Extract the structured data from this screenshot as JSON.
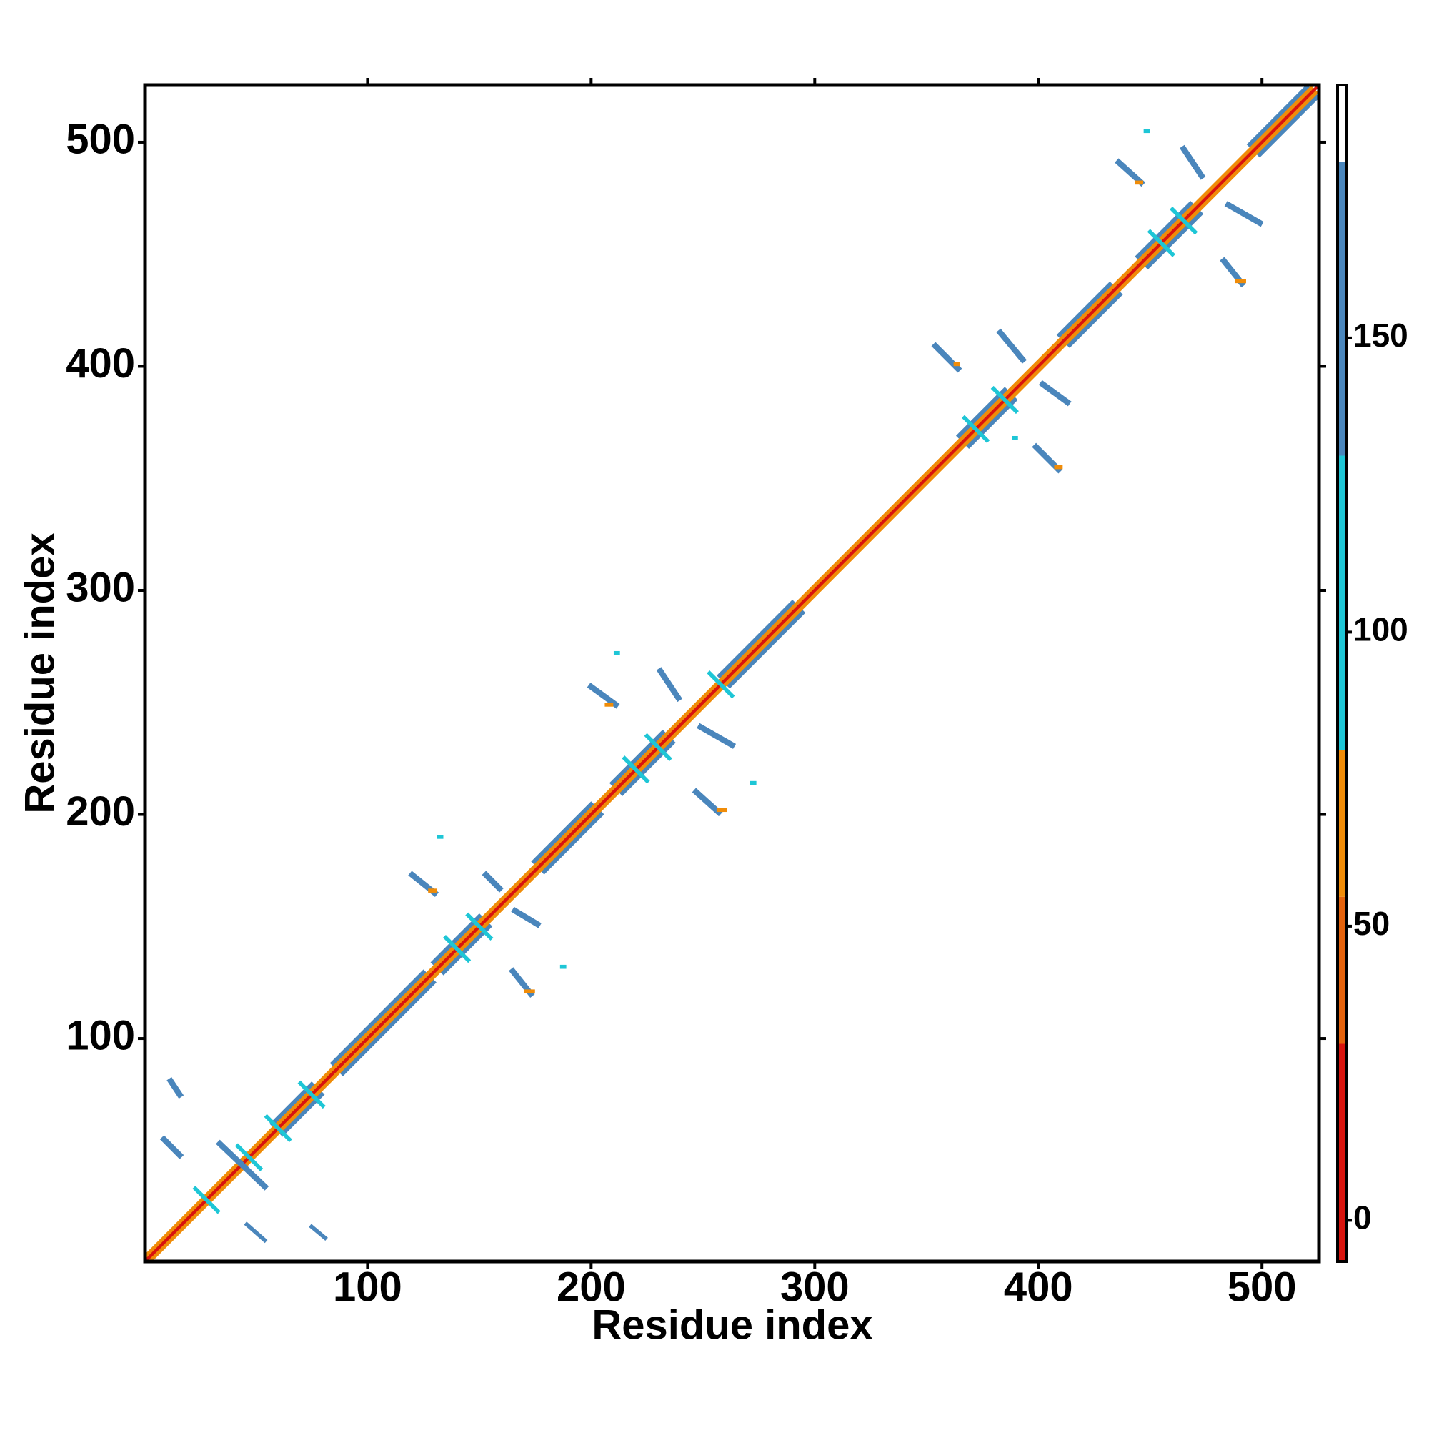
{
  "chart_data": {
    "type": "heatmap",
    "xlabel": "Residue index",
    "ylabel": "Residue index",
    "xlim": [
      0.5,
      525.5
    ],
    "ylim": [
      0.5,
      525.5
    ],
    "xticks": [
      100,
      200,
      300,
      400,
      500
    ],
    "yticks": [
      100,
      200,
      300,
      400,
      500
    ],
    "colorbar": {
      "lim": [
        -7,
        193
      ],
      "ticks": [
        0,
        50,
        100,
        150
      ],
      "breaks": [
        -7,
        30,
        55,
        80,
        130,
        180,
        193
      ],
      "colors": [
        "#d8140e",
        "#e4620c",
        "#f08c08",
        "#1ec6d6",
        "#4a86bc",
        "#ffffff"
      ]
    },
    "contacts": [
      {
        "x": [
          58,
          75
        ],
        "y": [
          62,
          79
        ],
        "value": 165
      },
      {
        "x": [
          62,
          79
        ],
        "y": [
          58,
          75
        ],
        "value": 165
      },
      {
        "x": [
          85,
          125
        ],
        "y": [
          89,
          129
        ],
        "value": 165
      },
      {
        "x": [
          89,
          129
        ],
        "y": [
          85,
          125
        ],
        "value": 165
      },
      {
        "x": [
          130,
          150
        ],
        "y": [
          134,
          154
        ],
        "value": 165
      },
      {
        "x": [
          134,
          154
        ],
        "y": [
          130,
          150
        ],
        "value": 165
      },
      {
        "x": [
          175,
          200
        ],
        "y": [
          179,
          204
        ],
        "value": 165
      },
      {
        "x": [
          179,
          204
        ],
        "y": [
          175,
          200
        ],
        "value": 165
      },
      {
        "x": [
          210,
          232
        ],
        "y": [
          214,
          236
        ],
        "value": 165
      },
      {
        "x": [
          214,
          236
        ],
        "y": [
          210,
          232
        ],
        "value": 165
      },
      {
        "x": [
          258,
          290
        ],
        "y": [
          262,
          294
        ],
        "value": 165
      },
      {
        "x": [
          262,
          294
        ],
        "y": [
          258,
          290
        ],
        "value": 165
      },
      {
        "x": [
          365,
          385
        ],
        "y": [
          369,
          389
        ],
        "value": 165
      },
      {
        "x": [
          369,
          389
        ],
        "y": [
          365,
          385
        ],
        "value": 165
      },
      {
        "x": [
          410,
          432
        ],
        "y": [
          414,
          436
        ],
        "value": 165
      },
      {
        "x": [
          414,
          436
        ],
        "y": [
          410,
          432
        ],
        "value": 165
      },
      {
        "x": [
          445,
          468
        ],
        "y": [
          449,
          472
        ],
        "value": 165
      },
      {
        "x": [
          449,
          472
        ],
        "y": [
          445,
          468
        ],
        "value": 165
      },
      {
        "x": [
          495,
          520
        ],
        "y": [
          499,
          524
        ],
        "value": 165
      },
      {
        "x": [
          499,
          524
        ],
        "y": [
          495,
          520
        ],
        "value": 165
      },
      {
        "x": [
          1,
          522
        ],
        "y": [
          3,
          524
        ],
        "value": 60
      },
      {
        "x": [
          3,
          524
        ],
        "y": [
          1,
          522
        ],
        "value": 60
      },
      {
        "x": [
          1,
          525
        ],
        "y": [
          1,
          525
        ],
        "value": 10
      },
      {
        "x": [
          23,
          33
        ],
        "y": [
          33,
          23
        ],
        "value": 110
      },
      {
        "x": [
          42,
          52
        ],
        "y": [
          52,
          42
        ],
        "value": 110
      },
      {
        "x": [
          55,
          65
        ],
        "y": [
          65,
          55
        ],
        "value": 110
      },
      {
        "x": [
          70,
          80
        ],
        "y": [
          80,
          70
        ],
        "value": 110
      },
      {
        "x": [
          135,
          145
        ],
        "y": [
          145,
          135
        ],
        "value": 110
      },
      {
        "x": [
          145,
          155
        ],
        "y": [
          155,
          145
        ],
        "value": 110
      },
      {
        "x": [
          215,
          225
        ],
        "y": [
          225,
          215
        ],
        "value": 110
      },
      {
        "x": [
          225,
          235
        ],
        "y": [
          235,
          225
        ],
        "value": 110
      },
      {
        "x": [
          253,
          263
        ],
        "y": [
          263,
          253
        ],
        "value": 110
      },
      {
        "x": [
          367,
          377
        ],
        "y": [
          377,
          367
        ],
        "value": 110
      },
      {
        "x": [
          380,
          390
        ],
        "y": [
          390,
          380
        ],
        "value": 110
      },
      {
        "x": [
          450,
          460
        ],
        "y": [
          460,
          450
        ],
        "value": 110
      },
      {
        "x": [
          460,
          470
        ],
        "y": [
          470,
          460
        ],
        "value": 110
      },
      {
        "x": [
          12,
          16
        ],
        "y": [
          81,
          75
        ],
        "value": 160
      },
      {
        "x": [
          9,
          16
        ],
        "y": [
          55,
          48
        ],
        "value": 160
      },
      {
        "x": [
          34,
          54
        ],
        "y": [
          53,
          34
        ],
        "value": 160
      },
      {
        "x": [
          46,
          54
        ],
        "y": [
          17,
          10
        ],
        "value": 150
      },
      {
        "x": [
          75,
          81
        ],
        "y": [
          16,
          11
        ],
        "value": 150
      },
      {
        "x": [
          120,
          130
        ],
        "y": [
          173,
          165
        ],
        "value": 160
      },
      {
        "x": [
          153,
          159
        ],
        "y": [
          173,
          167
        ],
        "value": 160
      },
      {
        "x": [
          165,
          173
        ],
        "y": [
          130,
          120
        ],
        "value": 160
      },
      {
        "x": [
          166,
          176
        ],
        "y": [
          157,
          151
        ],
        "value": 160
      },
      {
        "x": [
          128,
          130
        ],
        "y": [
          166,
          166
        ],
        "value": 60
      },
      {
        "x": [
          171,
          174
        ],
        "y": [
          121,
          121
        ],
        "value": 60
      },
      {
        "x": [
          200,
          211
        ],
        "y": [
          257,
          249
        ],
        "value": 160
      },
      {
        "x": [
          231,
          239
        ],
        "y": [
          264,
          252
        ],
        "value": 160
      },
      {
        "x": [
          247,
          257
        ],
        "y": [
          210,
          201
        ],
        "value": 160
      },
      {
        "x": [
          249,
          263
        ],
        "y": [
          239,
          231
        ],
        "value": 160
      },
      {
        "x": [
          207,
          209
        ],
        "y": [
          249,
          249
        ],
        "value": 60
      },
      {
        "x": [
          257,
          260
        ],
        "y": [
          202,
          202
        ],
        "value": 60
      },
      {
        "x": [
          354,
          364
        ],
        "y": [
          409,
          399
        ],
        "value": 160
      },
      {
        "x": [
          383,
          393
        ],
        "y": [
          415,
          403
        ],
        "value": 160
      },
      {
        "x": [
          399,
          409
        ],
        "y": [
          364,
          354
        ],
        "value": 160
      },
      {
        "x": [
          402,
          413
        ],
        "y": [
          392,
          384
        ],
        "value": 160
      },
      {
        "x": [
          363,
          364
        ],
        "y": [
          401,
          401
        ],
        "value": 60
      },
      {
        "x": [
          408,
          410
        ],
        "y": [
          355,
          355
        ],
        "value": 60
      },
      {
        "x": [
          436,
          446
        ],
        "y": [
          491,
          482
        ],
        "value": 160
      },
      {
        "x": [
          465,
          473
        ],
        "y": [
          497,
          485
        ],
        "value": 160
      },
      {
        "x": [
          483,
          491
        ],
        "y": [
          447,
          437
        ],
        "value": 160
      },
      {
        "x": [
          485,
          499
        ],
        "y": [
          472,
          464
        ],
        "value": 160
      },
      {
        "x": [
          444,
          446
        ],
        "y": [
          482,
          482
        ],
        "value": 60
      },
      {
        "x": [
          489,
          492
        ],
        "y": [
          438,
          438
        ],
        "value": 60
      },
      {
        "x": [
          448,
          449
        ],
        "y": [
          505,
          505
        ],
        "value": 110
      },
      {
        "x": [
          389,
          390
        ],
        "y": [
          368,
          368
        ],
        "value": 110
      },
      {
        "x": [
          272,
          273
        ],
        "y": [
          214,
          214
        ],
        "value": 110
      },
      {
        "x": [
          211,
          212
        ],
        "y": [
          272,
          272
        ],
        "value": 110
      },
      {
        "x": [
          187,
          188
        ],
        "y": [
          132,
          132
        ],
        "value": 110
      },
      {
        "x": [
          132,
          133
        ],
        "y": [
          190,
          190
        ],
        "value": 110
      }
    ]
  }
}
